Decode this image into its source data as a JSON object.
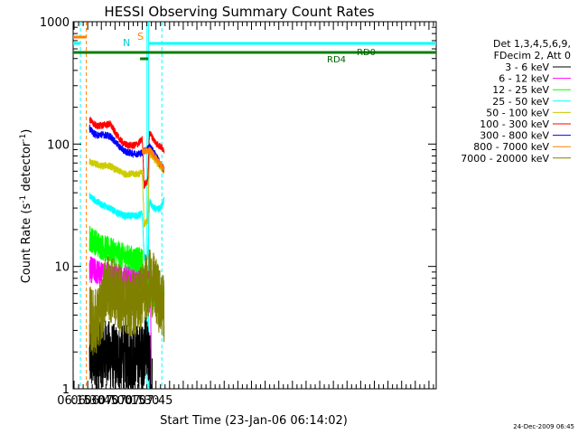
{
  "chart_data": {
    "type": "line",
    "title": "HESSI Observing Summary Count Rates",
    "xlabel": "Start Time (23-Jan-06 06:14:02)",
    "ylabel_prefix": "Count Rate (s",
    "ylabel_sup": "-1",
    "ylabel_mid": " detector",
    "ylabel_sup2": "-1",
    "ylabel_suffix": ")",
    "yscale": "log",
    "ylim": [
      1,
      1000
    ],
    "xlim_minutes": [
      374,
      773
    ],
    "x_ticks": [
      {
        "label": "06:15",
        "minutes": 375
      },
      {
        "label": "06:30",
        "minutes": 390
      },
      {
        "label": "06:45",
        "minutes": 405
      },
      {
        "label": "07:00",
        "minutes": 420
      },
      {
        "label": "07:15",
        "minutes": 435
      },
      {
        "label": "07:30",
        "minutes": 450
      },
      {
        "label": "07:45",
        "minutes": 465
      }
    ],
    "y_ticks": [
      {
        "label": "1",
        "value": 1
      },
      {
        "label": "10",
        "value": 10
      },
      {
        "label": "100",
        "value": 100
      },
      {
        "label": "1000",
        "value": 1000
      }
    ],
    "legend_header": [
      "Det 1,3,4,5,6,9,",
      "FDecim 2, Att 0"
    ],
    "legend_placement": "right",
    "series": [
      {
        "name": "3 - 6 keV",
        "color": "#000000",
        "x": [
          392,
          400,
          410,
          420,
          430,
          440,
          450,
          455,
          458,
          461
        ],
        "y": [
          1.8,
          1.8,
          2.0,
          1.8,
          1.8,
          1.8,
          1.8,
          2.4,
          1.6,
          1.0
        ]
      },
      {
        "name": "6 - 12 keV",
        "color": "#ff00ff",
        "x": [
          392,
          400,
          405,
          410,
          420,
          430,
          440,
          450,
          454,
          457,
          459,
          460
        ],
        "y": [
          9.5,
          9.0,
          8.5,
          8.8,
          8.2,
          8.0,
          7.8,
          7.7,
          7.5,
          7.2,
          7.0,
          1.0
        ]
      },
      {
        "name": "12 - 25 keV",
        "color": "#00ff00",
        "x": [
          392,
          400,
          405,
          410,
          420,
          430,
          440,
          450,
          452,
          454,
          456,
          458,
          462,
          466,
          470,
          474
        ],
        "y": [
          17,
          15.5,
          14.5,
          14,
          13,
          12,
          11.5,
          11,
          6.5,
          6.3,
          6.5,
          6.2,
          6.0,
          5.8,
          5.6,
          5.5
        ]
      },
      {
        "name": "25 - 50 keV",
        "color": "#00ffff",
        "x": [
          392,
          395,
          400,
          405,
          410,
          415,
          420,
          425,
          430,
          435,
          440,
          445,
          450,
          452,
          454,
          456,
          458,
          462,
          466,
          470,
          474
        ],
        "y": [
          38,
          36,
          34,
          32,
          31,
          30,
          28,
          27,
          26,
          26,
          26,
          26,
          27,
          12,
          11.5,
          12,
          34,
          30,
          29,
          30,
          35
        ]
      },
      {
        "name": "50 - 100 keV",
        "color": "#cccc00",
        "x": [
          392,
          395,
          400,
          405,
          410,
          415,
          420,
          425,
          430,
          435,
          440,
          445,
          450,
          452,
          454,
          456,
          458,
          462,
          466,
          470,
          474
        ],
        "y": [
          72,
          70,
          68,
          66,
          67,
          66,
          62,
          60,
          57,
          57,
          57,
          57,
          58,
          22,
          23,
          24,
          84,
          78,
          70,
          65,
          60
        ]
      },
      {
        "name": "100 - 300 keV",
        "color": "#ff0000",
        "x": [
          392,
          395,
          400,
          405,
          410,
          415,
          420,
          425,
          430,
          435,
          440,
          445,
          450,
          452,
          454,
          456,
          458,
          462,
          466,
          470,
          474
        ],
        "y": [
          160,
          150,
          140,
          142,
          145,
          145,
          125,
          110,
          100,
          98,
          97,
          100,
          110,
          46,
          48,
          50,
          125,
          110,
          100,
          95,
          90
        ]
      },
      {
        "name": "300 - 800 keV",
        "color": "#0000ff",
        "x": [
          392,
          395,
          400,
          405,
          410,
          415,
          420,
          425,
          430,
          435,
          440,
          445,
          450,
          452,
          454,
          456,
          458,
          462,
          466,
          470,
          474
        ],
        "y": [
          135,
          125,
          118,
          120,
          118,
          115,
          105,
          95,
          88,
          85,
          84,
          83,
          85,
          88,
          90,
          92,
          95,
          88,
          78,
          68,
          62
        ]
      },
      {
        "name": "800 - 7000 keV",
        "color": "#ff8000",
        "x": [
          450,
          453,
          456,
          458,
          462,
          466,
          470,
          474
        ],
        "y": [
          85,
          88,
          88,
          90,
          82,
          75,
          68,
          62
        ]
      },
      {
        "name": "7000 - 20000 keV",
        "color": "#808000",
        "x": [
          392,
          395,
          400,
          405,
          410,
          415,
          420,
          425,
          430,
          435,
          440,
          445,
          450,
          452,
          454,
          456,
          458,
          462,
          466,
          470,
          474
        ],
        "y": [
          3.8,
          3.5,
          3.6,
          4.2,
          7.0,
          6.5,
          6.0,
          5.5,
          5.2,
          5.0,
          5.0,
          5.2,
          5.8,
          6.5,
          7.0,
          7.0,
          7.5,
          7.0,
          6.0,
          5.0,
          4.5
        ]
      }
    ],
    "annotations": {
      "saa_label": "S",
      "night_label": "N",
      "rd0_label": "RD0",
      "rd4_label": "RD4"
    },
    "timestamp": "24-Dec-2009 06:45",
    "colors": {
      "saa": "#ff8000",
      "night": "#00ffff",
      "decimation": "#008000",
      "axis": "#000000"
    }
  }
}
